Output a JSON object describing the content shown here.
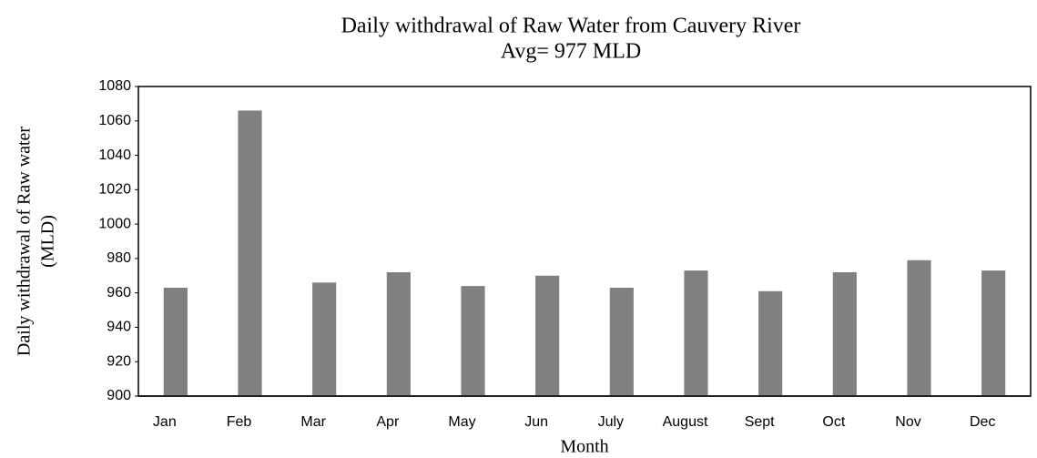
{
  "chart_data": {
    "type": "bar",
    "title": "Daily withdrawal of Raw Water from Cauvery River",
    "subtitle": "Avg= 977 MLD",
    "xlabel": "Month",
    "ylabel": [
      "Daily withdrawal of Raw water",
      "(MLD)"
    ],
    "categories": [
      "Jan",
      "Feb",
      "Mar",
      "Apr",
      "May",
      "Jun",
      "July",
      "August",
      "Sept",
      "Oct",
      "Nov",
      "Dec"
    ],
    "values": [
      963,
      1066,
      966,
      972,
      964,
      970,
      963,
      973,
      961,
      972,
      979,
      973
    ],
    "color": "#808080",
    "ylim": [
      900,
      1080
    ],
    "yticks": [
      900,
      920,
      940,
      960,
      980,
      1000,
      1020,
      1040,
      1060,
      1080
    ],
    "grid": false
  }
}
